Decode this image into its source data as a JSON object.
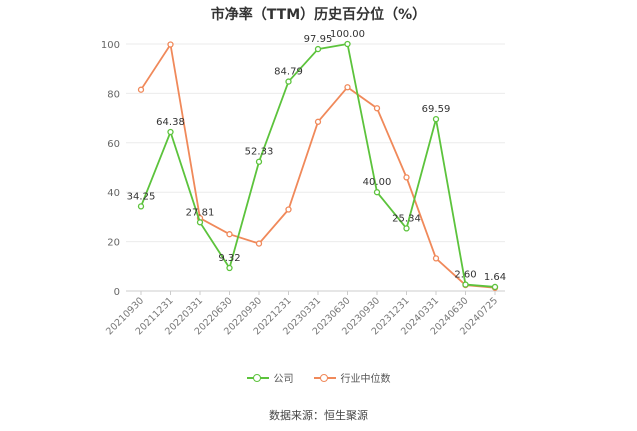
{
  "chart_data": {
    "type": "line",
    "title": "市净率（TTM）历史百分位（%）",
    "categories": [
      "20210930",
      "20211231",
      "20220331",
      "20220630",
      "20220930",
      "20221231",
      "20230331",
      "20230630",
      "20230930",
      "20231231",
      "20240331",
      "20240630",
      "20240725"
    ],
    "ylim": [
      0,
      100
    ],
    "yticks": [
      0,
      20,
      40,
      60,
      80,
      100
    ],
    "grid": true,
    "legend_position": "bottom",
    "series": [
      {
        "name": "公司",
        "color": "#5cc33c",
        "values": [
          34.25,
          64.38,
          27.81,
          9.32,
          52.33,
          84.79,
          97.95,
          100.0,
          40.0,
          25.34,
          69.59,
          2.6,
          1.64
        ],
        "labels": [
          "34.25",
          "64.38",
          "27.81",
          "9.32",
          "52.33",
          "84.79",
          "97.95",
          "100.00",
          "40.00",
          "25.34",
          "69.59",
          "2.60",
          "1.64"
        ]
      },
      {
        "name": "行业中位数",
        "color": "#f0895a",
        "values": [
          81.5,
          99.8,
          29.5,
          23.0,
          19.2,
          33.0,
          68.5,
          82.5,
          74.0,
          46.0,
          13.2,
          2.4,
          1.3
        ]
      }
    ]
  },
  "source": "数据来源：恒生聚源"
}
